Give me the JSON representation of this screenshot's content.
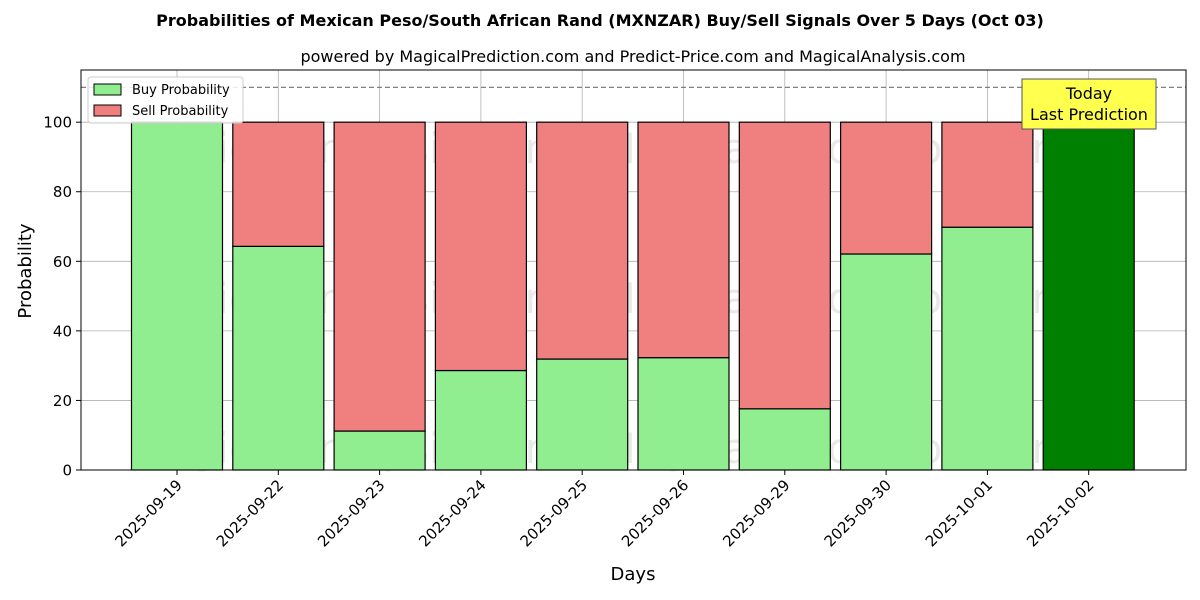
{
  "chart_data": {
    "type": "bar",
    "stacked": true,
    "title": "Probabilities of Mexican Peso/South African Rand (MXNZAR) Buy/Sell Signals Over 5 Days (Oct 03)",
    "subtitle": "powered by MagicalPrediction.com and Predict-Price.com and MagicalAnalysis.com",
    "xlabel": "Days",
    "ylabel": "Probability",
    "ylim": [
      0,
      115
    ],
    "yticks": [
      0,
      20,
      40,
      60,
      80,
      100
    ],
    "reference_line": 110,
    "grid": true,
    "legend_position": "top-left",
    "categories": [
      "2025-09-19",
      "2025-09-22",
      "2025-09-23",
      "2025-09-24",
      "2025-09-25",
      "2025-09-26",
      "2025-09-29",
      "2025-09-30",
      "2025-10-01",
      "2025-10-02"
    ],
    "series": [
      {
        "name": "Buy Probability",
        "color": "#90ee90",
        "values": [
          100,
          64.3,
          11.2,
          28.6,
          31.9,
          32.3,
          17.6,
          62.1,
          69.8,
          100
        ]
      },
      {
        "name": "Sell Probability",
        "color": "#f08080",
        "values": [
          0,
          35.7,
          88.8,
          71.4,
          68.1,
          67.7,
          82.4,
          37.9,
          30.2,
          0
        ]
      }
    ],
    "highlight": {
      "index": 9,
      "color": "#008000"
    },
    "annotation": {
      "lines": [
        "Today",
        "Last Prediction"
      ],
      "background": "#ffff4d"
    },
    "watermarks": [
      "MagicalAnalysis.com",
      "MagicalPrediction.com"
    ]
  }
}
